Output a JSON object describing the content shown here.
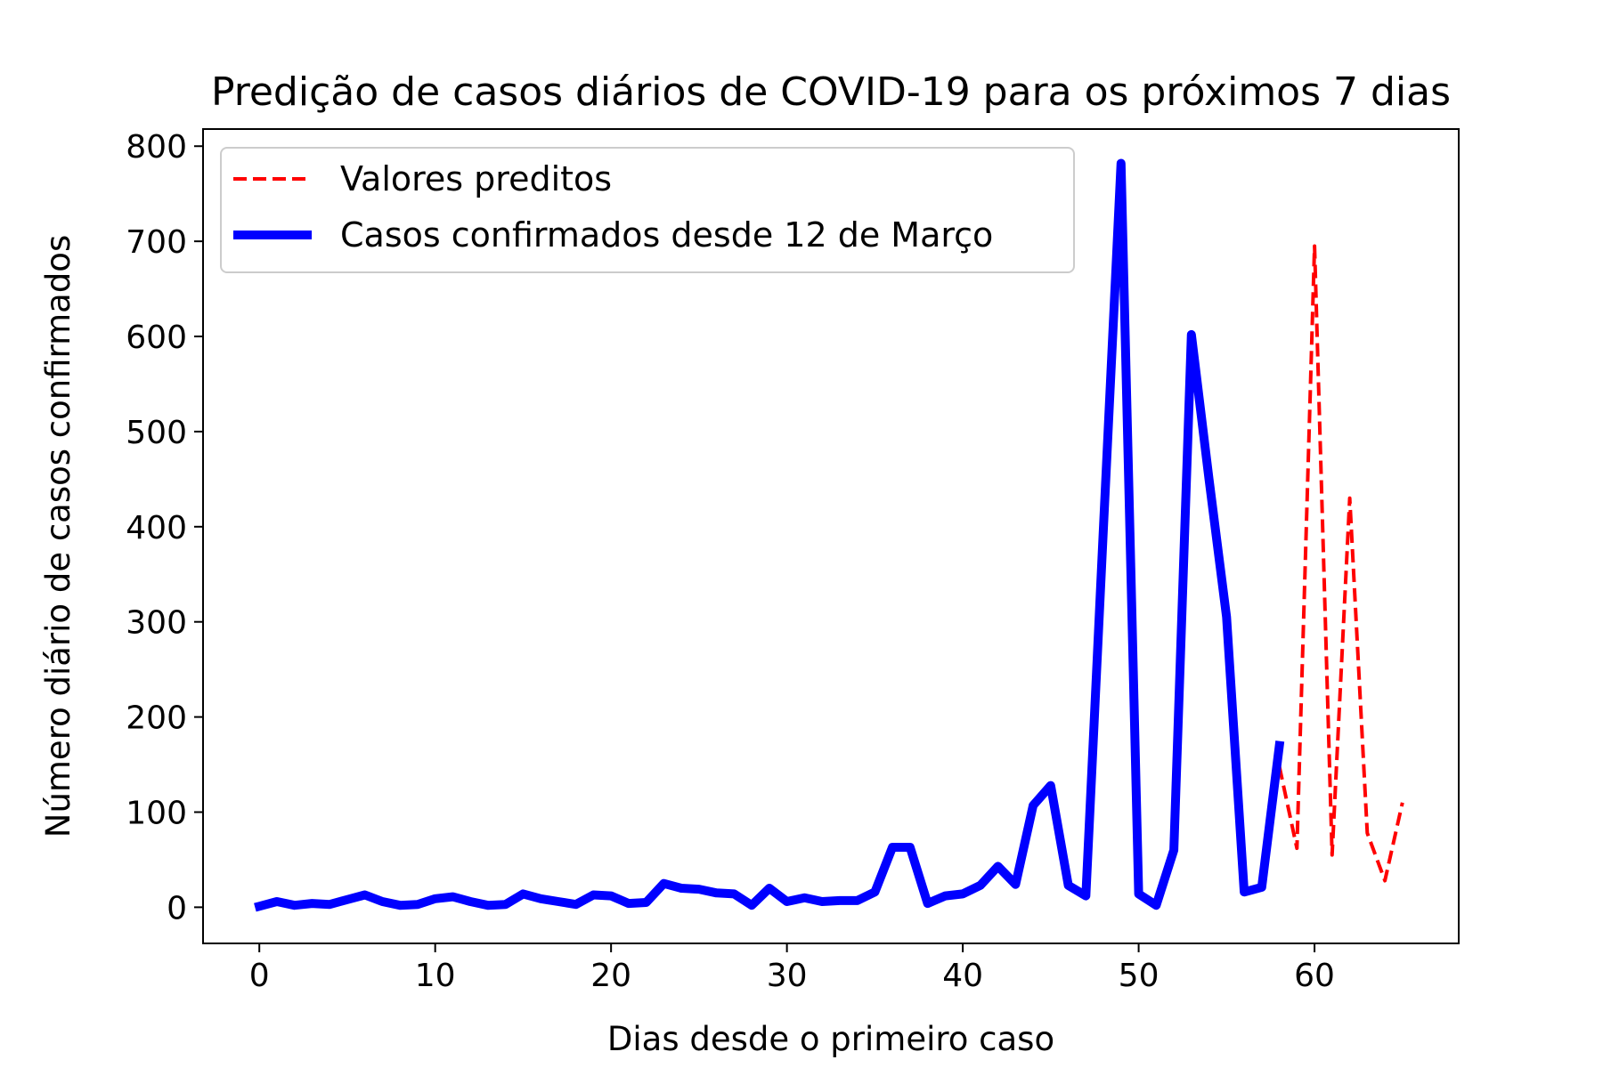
{
  "chart_data": {
    "type": "line",
    "title": "Predição de casos diários de COVID-19 para os próximos 7 dias",
    "xlabel": "Dias desde o primeiro caso",
    "ylabel": "Número diário de casos confirmados",
    "xlim": [
      -3.2,
      68.2
    ],
    "ylim": [
      -38,
      818
    ],
    "xticks": [
      0,
      10,
      20,
      30,
      40,
      50,
      60
    ],
    "yticks": [
      0,
      100,
      200,
      300,
      400,
      500,
      600,
      700,
      800
    ],
    "grid": false,
    "legend_position": "upper left",
    "series": [
      {
        "name": "Valores preditos",
        "color": "#ff0000",
        "style": "dashed",
        "x": [
          58,
          59,
          60,
          61,
          62,
          63,
          64,
          65
        ],
        "y": [
          148,
          62,
          695,
          55,
          430,
          78,
          28,
          110
        ]
      },
      {
        "name": "Casos confirmados desde 12 de Março",
        "color": "#0000ff",
        "style": "solid",
        "x": [
          0,
          1,
          2,
          3,
          4,
          5,
          6,
          7,
          8,
          9,
          10,
          11,
          12,
          13,
          14,
          15,
          16,
          17,
          18,
          19,
          20,
          21,
          22,
          23,
          24,
          25,
          26,
          27,
          28,
          29,
          30,
          31,
          32,
          33,
          34,
          35,
          36,
          37,
          38,
          39,
          40,
          41,
          42,
          43,
          44,
          45,
          46,
          47,
          48,
          49,
          50,
          51,
          52,
          53,
          54,
          55,
          56,
          57,
          58
        ],
        "y": [
          1,
          6,
          2,
          4,
          3,
          8,
          13,
          6,
          2,
          3,
          9,
          11,
          6,
          2,
          3,
          14,
          9,
          6,
          3,
          13,
          12,
          4,
          5,
          25,
          20,
          19,
          15,
          14,
          2,
          20,
          6,
          10,
          6,
          7,
          7,
          16,
          63,
          63,
          4,
          12,
          14,
          23,
          43,
          24,
          107,
          128,
          23,
          12,
          400,
          782,
          14,
          2,
          60,
          602,
          450,
          305,
          16,
          21,
          170
        ]
      }
    ]
  }
}
